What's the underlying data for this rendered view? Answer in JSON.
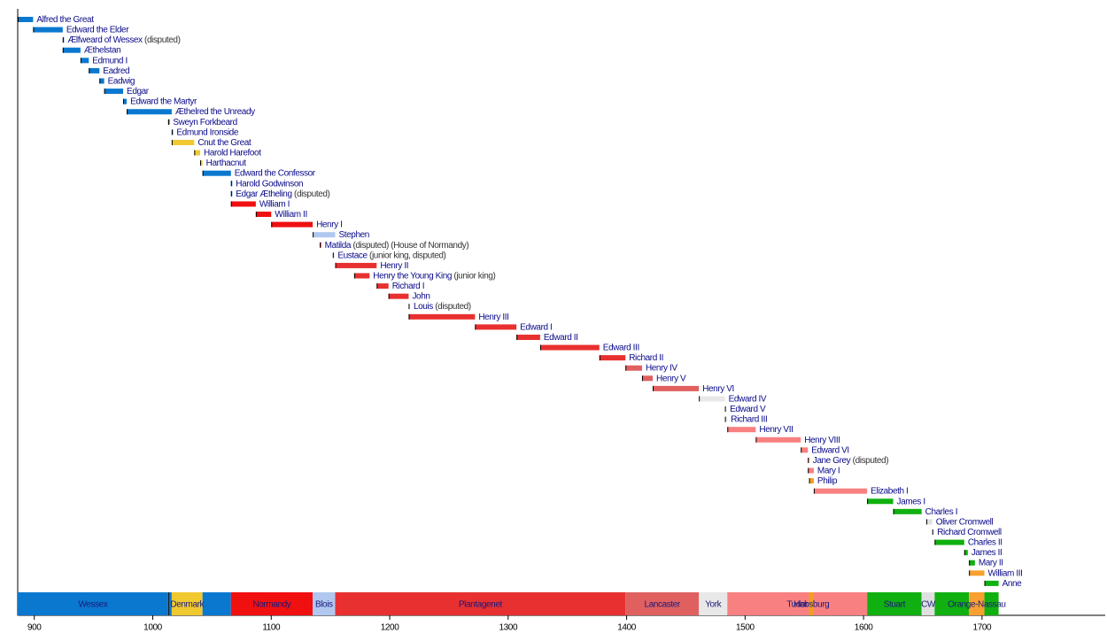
{
  "chart_data": {
    "type": "gantt",
    "xlim": [
      886,
      1804
    ],
    "xticks": [
      900,
      1000,
      1100,
      1200,
      1300,
      1400,
      1500,
      1600,
      1700
    ],
    "monarchs": [
      {
        "name": "Alfred the Great",
        "start": 886,
        "end": 899,
        "color": "#0b78d0"
      },
      {
        "name": "Edward the Elder",
        "start": 899,
        "end": 924,
        "color": "#0b78d0"
      },
      {
        "name": "Ælfweard of Wessex",
        "note": "(disputed)",
        "start": 924,
        "end": 924,
        "color": "#0b78d0"
      },
      {
        "name": "Æthelstan",
        "start": 924,
        "end": 939,
        "color": "#0b78d0"
      },
      {
        "name": "Edmund I",
        "start": 939,
        "end": 946,
        "color": "#0b78d0"
      },
      {
        "name": "Eadred",
        "start": 946,
        "end": 955,
        "color": "#0b78d0"
      },
      {
        "name": "Eadwig",
        "start": 955,
        "end": 959,
        "color": "#0b78d0"
      },
      {
        "name": "Edgar",
        "start": 959,
        "end": 975,
        "color": "#0b78d0"
      },
      {
        "name": "Edward the Martyr",
        "start": 975,
        "end": 978,
        "color": "#0b78d0"
      },
      {
        "name": "Æthelred the Unready",
        "start": 978,
        "end": 1016,
        "color": "#0b78d0"
      },
      {
        "name": "Sweyn Forkbeard",
        "start": 1013,
        "end": 1014,
        "color": "#1a1a1a"
      },
      {
        "name": "Edmund Ironside",
        "start": 1016,
        "end": 1016,
        "color": "#0b78d0"
      },
      {
        "name": "Cnut the Great",
        "start": 1016,
        "end": 1035,
        "color": "#f0c830"
      },
      {
        "name": "Harold Harefoot",
        "start": 1035,
        "end": 1040,
        "color": "#f0c830"
      },
      {
        "name": "Harthacnut",
        "start": 1040,
        "end": 1042,
        "color": "#f0c830"
      },
      {
        "name": "Edward the Confessor",
        "start": 1042,
        "end": 1066,
        "color": "#0b78d0"
      },
      {
        "name": "Harold Godwinson",
        "start": 1066,
        "end": 1066,
        "color": "#0b78d0"
      },
      {
        "name": "Edgar Ætheling",
        "note": "(disputed)",
        "start": 1066,
        "end": 1066,
        "color": "#0b78d0"
      },
      {
        "name": "William I",
        "start": 1066,
        "end": 1087,
        "color": "#f01010"
      },
      {
        "name": "William II",
        "start": 1087,
        "end": 1100,
        "color": "#f01010"
      },
      {
        "name": "Henry I",
        "start": 1100,
        "end": 1135,
        "color": "#f01010"
      },
      {
        "name": "Stephen",
        "start": 1135,
        "end": 1154,
        "color": "#b0c8f0"
      },
      {
        "name": "Matilda",
        "note": "(disputed) (House of Normandy)",
        "start": 1141,
        "end": 1141,
        "color": "#f01010"
      },
      {
        "name": "Eustace",
        "note": "(junior king, disputed)",
        "start": 1152,
        "end": 1153,
        "color": "#b0c8f0"
      },
      {
        "name": "Henry II",
        "start": 1154,
        "end": 1189,
        "color": "#e83030"
      },
      {
        "name": "Henry the Young King",
        "note": "(junior king)",
        "start": 1170,
        "end": 1183,
        "color": "#e83030"
      },
      {
        "name": "Richard I",
        "start": 1189,
        "end": 1199,
        "color": "#e83030"
      },
      {
        "name": "John",
        "start": 1199,
        "end": 1216,
        "color": "#e83030"
      },
      {
        "name": "Louis",
        "note": "(disputed)",
        "start": 1216,
        "end": 1217,
        "color": "#e8e8e8"
      },
      {
        "name": "Henry III",
        "start": 1216,
        "end": 1272,
        "color": "#e83030"
      },
      {
        "name": "Edward I",
        "start": 1272,
        "end": 1307,
        "color": "#e83030"
      },
      {
        "name": "Edward II",
        "start": 1307,
        "end": 1327,
        "color": "#e83030"
      },
      {
        "name": "Edward III",
        "start": 1327,
        "end": 1377,
        "color": "#e83030"
      },
      {
        "name": "Richard II",
        "start": 1377,
        "end": 1399,
        "color": "#e83030"
      },
      {
        "name": "Henry IV",
        "start": 1399,
        "end": 1413,
        "color": "#e06060"
      },
      {
        "name": "Henry V",
        "start": 1413,
        "end": 1422,
        "color": "#e06060"
      },
      {
        "name": "Henry VI",
        "start": 1422,
        "end": 1461,
        "color": "#e06060"
      },
      {
        "name": "Edward IV",
        "start": 1461,
        "end": 1483,
        "color": "#e8e8e8"
      },
      {
        "name": "Edward V",
        "start": 1483,
        "end": 1483,
        "color": "#e8e8e8"
      },
      {
        "name": "Richard III",
        "start": 1483,
        "end": 1485,
        "color": "#e8e8e8"
      },
      {
        "name": "Henry VII",
        "start": 1485,
        "end": 1509,
        "color": "#f88080"
      },
      {
        "name": "Henry VIII",
        "start": 1509,
        "end": 1547,
        "color": "#f88080"
      },
      {
        "name": "Edward VI",
        "start": 1547,
        "end": 1553,
        "color": "#f88080"
      },
      {
        "name": "Jane Grey",
        "note": "(disputed)",
        "start": 1553,
        "end": 1553,
        "color": "#f88080"
      },
      {
        "name": "Mary I",
        "start": 1553,
        "end": 1558,
        "color": "#f88080"
      },
      {
        "name": "Philip",
        "start": 1554,
        "end": 1558,
        "color": "#f0a020"
      },
      {
        "name": "Elizabeth I",
        "start": 1558,
        "end": 1603,
        "color": "#f88080"
      },
      {
        "name": "James I",
        "start": 1603,
        "end": 1625,
        "color": "#10b010"
      },
      {
        "name": "Charles I",
        "start": 1625,
        "end": 1649,
        "color": "#10b010"
      },
      {
        "name": "Oliver Cromwell",
        "start": 1653,
        "end": 1658,
        "color": "#e0e0e0"
      },
      {
        "name": "Richard Cromwell",
        "start": 1658,
        "end": 1659,
        "color": "#e0e0e0"
      },
      {
        "name": "Charles II",
        "start": 1660,
        "end": 1685,
        "color": "#10b010"
      },
      {
        "name": "James II",
        "start": 1685,
        "end": 1688,
        "color": "#10b010"
      },
      {
        "name": "Mary II",
        "start": 1689,
        "end": 1694,
        "color": "#10b010"
      },
      {
        "name": "William III",
        "start": 1689,
        "end": 1702,
        "color": "#f8a030"
      },
      {
        "name": "Anne",
        "start": 1702,
        "end": 1714,
        "color": "#10b010"
      }
    ],
    "houses": [
      {
        "name": "Wessex",
        "start": 886,
        "end": 1013,
        "color": "#0b78d0"
      },
      {
        "name": null,
        "start": 1013,
        "end": 1014,
        "color": "#1a1a1a"
      },
      {
        "name": null,
        "start": 1014,
        "end": 1016,
        "color": "#0b78d0"
      },
      {
        "name": "Denmark",
        "start": 1016,
        "end": 1042,
        "color": "#f0c830"
      },
      {
        "name": null,
        "start": 1042,
        "end": 1066,
        "color": "#0b78d0"
      },
      {
        "name": "Normandy",
        "start": 1066,
        "end": 1135,
        "color": "#f01010"
      },
      {
        "name": "Blois",
        "start": 1135,
        "end": 1154,
        "color": "#b0c8f0"
      },
      {
        "name": "Plantagenet",
        "start": 1154,
        "end": 1399,
        "color": "#e83030"
      },
      {
        "name": "Lancaster",
        "start": 1399,
        "end": 1461,
        "color": "#e06060"
      },
      {
        "name": "York",
        "start": 1461,
        "end": 1485,
        "color": "#e8e8e8"
      },
      {
        "name": "Tudor",
        "start": 1485,
        "end": 1603,
        "color": "#f88080"
      },
      {
        "name": "Habsburg",
        "start": 1554,
        "end": 1558,
        "color": "#f0a020"
      },
      {
        "name": "Stuart",
        "start": 1603,
        "end": 1649,
        "color": "#10b010"
      },
      {
        "name": "CW",
        "start": 1649,
        "end": 1660,
        "color": "#e0e0e0"
      },
      {
        "name": null,
        "start": 1660,
        "end": 1689,
        "color": "#10b010"
      },
      {
        "name": "Orange-Nassau",
        "start": 1689,
        "end": 1702,
        "color": "#f8a030"
      },
      {
        "name": null,
        "start": 1702,
        "end": 1714,
        "color": "#10b010"
      }
    ]
  }
}
